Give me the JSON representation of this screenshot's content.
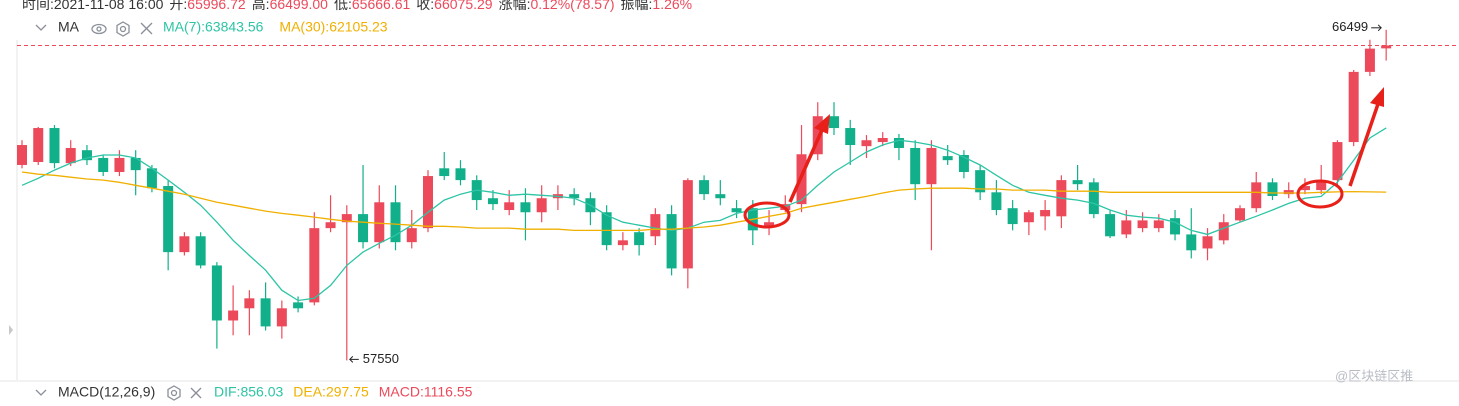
{
  "header": {
    "items": [
      {
        "label": "时间:",
        "value": "2021-11-08 16:00"
      },
      {
        "label": "开:",
        "value": "65996.72"
      },
      {
        "label": "高:",
        "value": "66499.00"
      },
      {
        "label": "低:",
        "value": "65666.61"
      },
      {
        "label": "收:",
        "value": "66075.29"
      },
      {
        "label": "涨幅:",
        "value": "0.12%(78.57)"
      },
      {
        "label": "振幅:",
        "value": "1.26%"
      }
    ]
  },
  "chart_data": {
    "type": "candlestick",
    "indicator": "MA",
    "up_color": "#ec4a5b",
    "down_color": "#11b08a",
    "ylim": [
      57100,
      66900
    ],
    "open": [
      62840,
      62920,
      63840,
      62890,
      63240,
      63030,
      62650,
      63030,
      62750,
      62270,
      60480,
      60910,
      60120,
      58630,
      58960,
      59230,
      58470,
      59120,
      59120,
      61130,
      61290,
      61510,
      60750,
      61830,
      60750,
      61130,
      62750,
      62750,
      62430,
      61940,
      61620,
      61830,
      61560,
      61940,
      62050,
      61940,
      61560,
      60670,
      61020,
      60910,
      61510,
      60040,
      62430,
      62050,
      61670,
      61670,
      61180,
      61620,
      61780,
      63130,
      64160,
      63840,
      63350,
      63460,
      63570,
      63300,
      62320,
      63080,
      63110,
      62700,
      62100,
      61670,
      61290,
      61450,
      61450,
      62430,
      62370,
      61510,
      60960,
      61130,
      61130,
      61400,
      60960,
      60580,
      60800,
      61340,
      61670,
      62370,
      62050,
      62160,
      62160,
      62430,
      63460,
      65360,
      65996.72
    ],
    "high": [
      63510,
      63870,
      63920,
      63510,
      63380,
      63110,
      63240,
      63240,
      62840,
      62430,
      61020,
      61020,
      60210,
      59580,
      59450,
      59660,
      59170,
      59280,
      61560,
      62020,
      61750,
      62840,
      62290,
      62290,
      61620,
      62700,
      63190,
      62970,
      62560,
      62160,
      62160,
      62210,
      62290,
      62290,
      62210,
      62100,
      61750,
      61020,
      61130,
      61670,
      61750,
      62480,
      62560,
      62430,
      61890,
      61890,
      61620,
      62020,
      63920,
      64540,
      64540,
      64060,
      63650,
      63730,
      63680,
      63510,
      63510,
      63380,
      63240,
      62840,
      62430,
      61890,
      61620,
      61890,
      62560,
      62840,
      62480,
      61620,
      61620,
      61560,
      61510,
      61620,
      61670,
      61130,
      61510,
      61750,
      62650,
      62480,
      62370,
      62480,
      62840,
      63510,
      65410,
      66230,
      66499
    ],
    "low": [
      62750,
      62840,
      62750,
      62810,
      62840,
      62540,
      62540,
      62020,
      62100,
      59990,
      60390,
      60040,
      57870,
      58230,
      58230,
      58360,
      58140,
      58850,
      59040,
      61020,
      57550,
      60580,
      60580,
      60530,
      60580,
      61020,
      62430,
      62290,
      61620,
      61620,
      61480,
      60800,
      61290,
      61620,
      61750,
      61210,
      60530,
      60530,
      60390,
      60670,
      59850,
      59500,
      61890,
      61750,
      61400,
      60670,
      60940,
      61560,
      61560,
      62970,
      63650,
      62840,
      63030,
      63350,
      62970,
      61890,
      60530,
      62840,
      62480,
      61890,
      61480,
      61070,
      60940,
      61070,
      61130,
      62160,
      61400,
      60860,
      60860,
      61020,
      61020,
      60800,
      60310,
      60260,
      60690,
      61290,
      61560,
      61890,
      61940,
      62050,
      62050,
      62270,
      63350,
      65250,
      65666.61
    ],
    "close": [
      63380,
      63840,
      62890,
      63300,
      62970,
      62650,
      63030,
      62700,
      62210,
      60480,
      60910,
      60120,
      58630,
      58900,
      59230,
      58470,
      58960,
      58960,
      61130,
      61290,
      61510,
      60750,
      61830,
      60750,
      61130,
      62540,
      62540,
      62430,
      61890,
      61780,
      61830,
      61560,
      61940,
      62050,
      61940,
      61560,
      60670,
      60800,
      60670,
      61510,
      60040,
      62430,
      62050,
      61940,
      61560,
      61070,
      61290,
      61780,
      63130,
      64160,
      63840,
      63380,
      63510,
      63570,
      63300,
      62320,
      63300,
      62970,
      62650,
      62100,
      61620,
      61240,
      61560,
      61620,
      62430,
      62320,
      61510,
      60910,
      61340,
      61340,
      61340,
      60960,
      60530,
      60910,
      61290,
      61670,
      62370,
      62000,
      62160,
      62270,
      62430,
      63460,
      65360,
      65990,
      66075.29
    ],
    "series": [
      {
        "name": "MA(7):63843.56",
        "color": "#2ec4a6",
        "values": [
          62290,
          62480,
          62700,
          62890,
          63030,
          63110,
          63110,
          63030,
          62750,
          62430,
          62100,
          61750,
          61290,
          60800,
          60390,
          59990,
          59450,
          59170,
          59230,
          59580,
          60120,
          60480,
          60720,
          60940,
          61210,
          61560,
          61890,
          62050,
          62160,
          62100,
          62020,
          62050,
          62020,
          61990,
          61940,
          61750,
          61480,
          61290,
          61210,
          61130,
          61070,
          61130,
          61290,
          61340,
          61530,
          61620,
          61670,
          61720,
          61890,
          62290,
          62650,
          62920,
          63190,
          63380,
          63510,
          63460,
          63380,
          63240,
          63050,
          62840,
          62560,
          62290,
          62100,
          62020,
          61940,
          61890,
          61800,
          61620,
          61480,
          61430,
          61400,
          61290,
          61070,
          60960,
          61130,
          61290,
          61450,
          61620,
          61800,
          61940,
          61990,
          62370,
          62970,
          63570,
          63843.56
        ]
      },
      {
        "name": "MA(30):62105.23",
        "color": "#f0b000",
        "values": [
          62650,
          62590,
          62560,
          62510,
          62460,
          62430,
          62370,
          62290,
          62210,
          62130,
          62050,
          61940,
          61830,
          61750,
          61670,
          61590,
          61530,
          61480,
          61430,
          61370,
          61320,
          61290,
          61260,
          61240,
          61210,
          61180,
          61180,
          61160,
          61130,
          61130,
          61130,
          61100,
          61100,
          61100,
          61070,
          61070,
          61070,
          61070,
          61070,
          61100,
          61100,
          61130,
          61160,
          61210,
          61290,
          61370,
          61450,
          61530,
          61670,
          61750,
          61830,
          61910,
          61990,
          62080,
          62160,
          62190,
          62210,
          62210,
          62210,
          62190,
          62190,
          62160,
          62160,
          62160,
          62130,
          62130,
          62130,
          62100,
          62100,
          62100,
          62100,
          62100,
          62100,
          62100,
          62100,
          62100,
          62100,
          62080,
          62080,
          62080,
          62100,
          62110,
          62120,
          62110,
          62105.23
        ]
      }
    ]
  },
  "macd": {
    "title": "MACD(12,26,9)",
    "items": [
      {
        "text": "DIF:856.03",
        "color": "#2ec4a6"
      },
      {
        "text": "DEA:297.75",
        "color": "#f0b000"
      },
      {
        "text": "MACD:1116.55",
        "color": "#ec4a5b"
      }
    ]
  },
  "watermark": "@区块链区推"
}
